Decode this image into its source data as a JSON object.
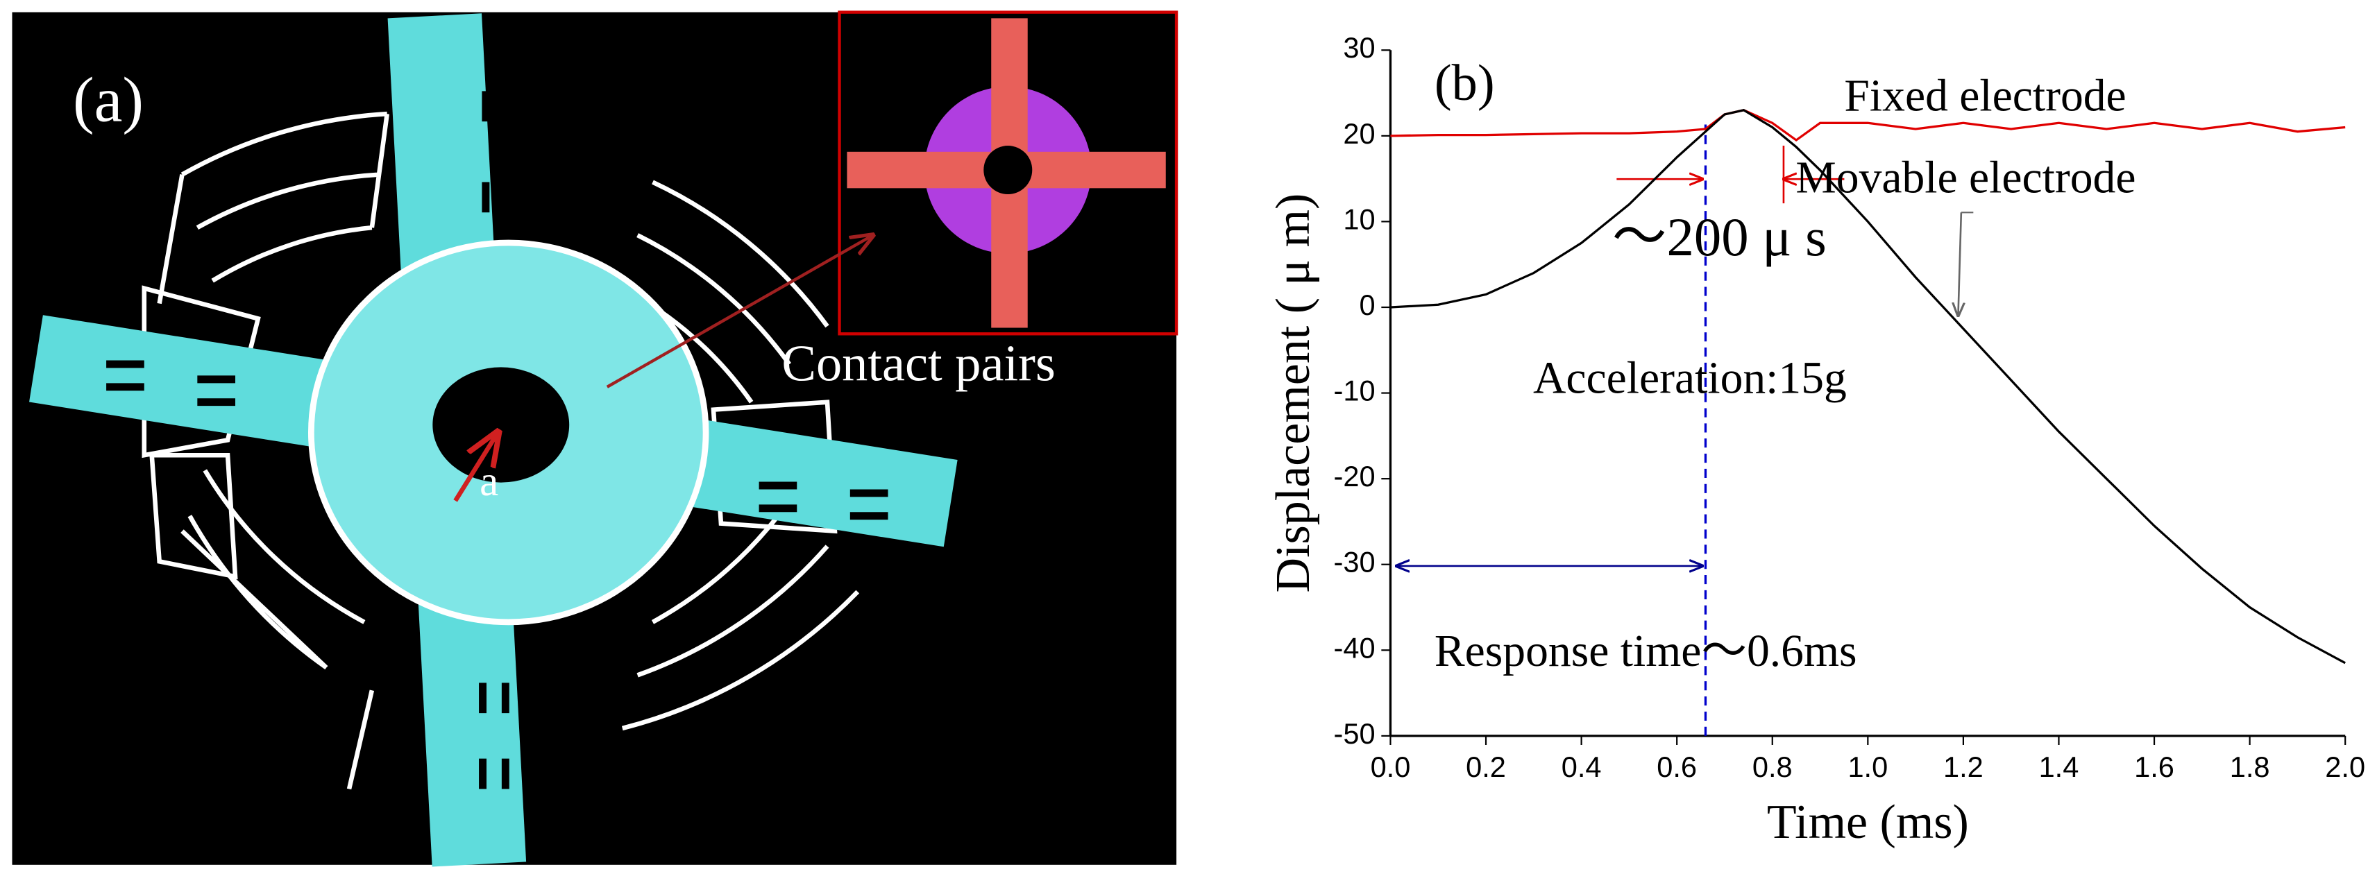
{
  "panel_a": {
    "label": "(a)",
    "callout": "Contact pairs",
    "marker": "a"
  },
  "chart_data": {
    "type": "line",
    "panel_label": "(b)",
    "x_label": "Time (ms)",
    "y_label": "Displacement ( μ m)",
    "x": [
      0,
      0.1,
      0.2,
      0.3,
      0.4,
      0.5,
      0.6,
      0.66,
      0.7,
      0.74,
      0.8,
      0.85,
      0.9,
      1.0,
      1.1,
      1.2,
      1.3,
      1.4,
      1.5,
      1.6,
      1.7,
      1.8,
      1.9,
      2.0
    ],
    "series": [
      {
        "name": "Fixed electrode",
        "color": "#e00000",
        "values": [
          20,
          20.1,
          20.1,
          20.2,
          20.3,
          20.3,
          20.5,
          20.8,
          22.5,
          23,
          21.5,
          19.5,
          21.5,
          21.5,
          20.8,
          21.5,
          20.8,
          21.5,
          20.8,
          21.5,
          20.8,
          21.5,
          20.5,
          21
        ]
      },
      {
        "name": "Movable electrode",
        "color": "#000000",
        "values": [
          0,
          0.3,
          1.5,
          4,
          7.5,
          12,
          17.5,
          20.5,
          22.5,
          23,
          21,
          18.7,
          16,
          10,
          3.5,
          -2.5,
          -8.5,
          -14.5,
          -20,
          -25.5,
          -30.5,
          -35,
          -38.5,
          -41.5
        ]
      }
    ],
    "annotations": [
      "～200 μ s",
      "Acceleration:15g",
      "Response time～0.6ms"
    ],
    "xlim": [
      0,
      2.0
    ],
    "xticks": [
      {
        "value": 0,
        "label": "0.0"
      },
      0.2,
      0.4,
      0.6,
      0.8,
      {
        "value": 1,
        "label": "1.0"
      },
      1.2,
      1.4,
      1.6,
      1.8,
      {
        "value": 2,
        "label": "2.0"
      }
    ],
    "ylim": [
      -50,
      30
    ],
    "yticks": [
      -50,
      -40,
      -30,
      -20,
      -10,
      0,
      10,
      20,
      30
    ],
    "grid": false
  }
}
